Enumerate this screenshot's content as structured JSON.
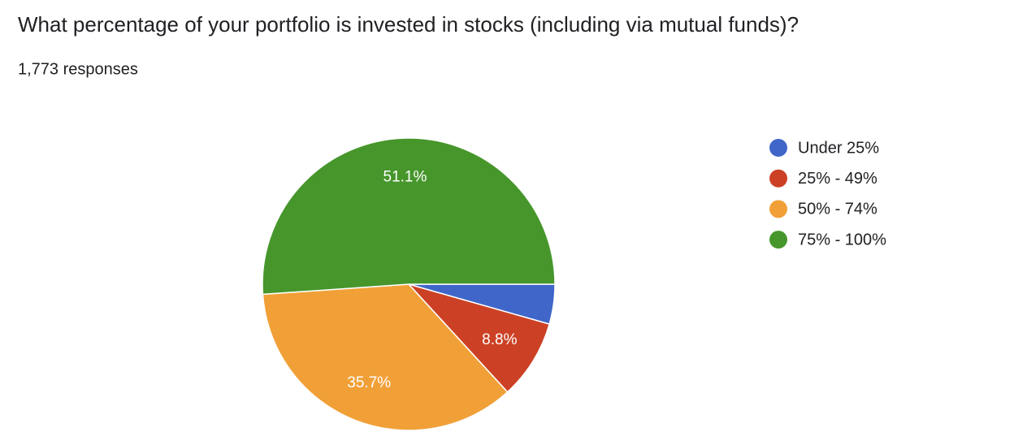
{
  "chart_data": {
    "type": "pie",
    "title": "What percentage of your portfolio is invested in stocks (including via mutual funds)?",
    "subtitle": "1,773 responses",
    "categories": [
      "Under 25%",
      "25% - 49%",
      "50% - 74%",
      "75% - 100%"
    ],
    "values": [
      4.4,
      8.8,
      35.7,
      51.1
    ],
    "value_labels": [
      null,
      "8.8%",
      "35.7%",
      "51.1%"
    ],
    "colors": [
      "#3f66c8",
      "#cc4125",
      "#f1a038",
      "#46962b"
    ],
    "legend": "right"
  }
}
